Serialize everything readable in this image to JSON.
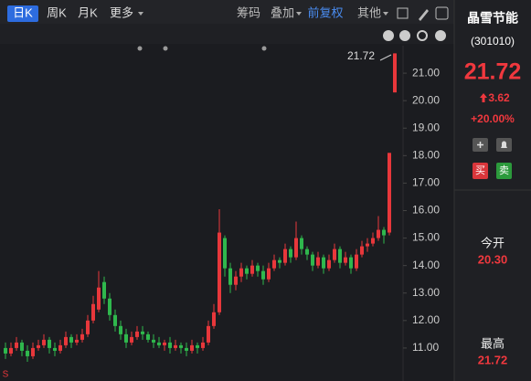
{
  "toolbar": {
    "tabs": [
      "日K",
      "周K",
      "月K",
      "更多"
    ],
    "tools": [
      "筹码",
      "叠加",
      "前复权",
      "其他"
    ]
  },
  "sidebar": {
    "name": "晶雪节能",
    "code": "(301010)",
    "price": "21.72",
    "change": "3.62",
    "change_pct": "+20.00%",
    "buy": "买",
    "sell": "卖",
    "open_label": "今开",
    "open_value": "20.30",
    "high_label": "最高",
    "high_value": "21.72"
  },
  "chart_data": {
    "type": "candlestick",
    "annotation": "21.72",
    "marker": "S",
    "up_color": "#e8373b",
    "down_color": "#2fb84d",
    "open": [
      11.0,
      10.8,
      11.0,
      11.2,
      10.9,
      10.7,
      11.0,
      11.1,
      11.3,
      11.0,
      10.9,
      11.1,
      11.4,
      11.2,
      11.3,
      11.5,
      12.0,
      12.4,
      13.4,
      12.8,
      12.2,
      11.8,
      11.5,
      11.2,
      11.4,
      11.6,
      11.5,
      11.3,
      11.2,
      11.1,
      11.2,
      11.0,
      11.1,
      11.0,
      10.9,
      11.1,
      11.0,
      11.2,
      11.8,
      12.3,
      15.0,
      13.9,
      13.3,
      13.6,
      13.9,
      13.7,
      14.0,
      13.8,
      13.5,
      13.9,
      14.2,
      14.1,
      14.6,
      14.3,
      15.0,
      14.6,
      14.4,
      14.0,
      14.3,
      13.9,
      14.2,
      14.6,
      14.1,
      14.3,
      13.9,
      14.4,
      14.7,
      14.8,
      15.0,
      15.3,
      15.2,
      20.3
    ],
    "high": [
      11.2,
      11.2,
      11.4,
      11.3,
      11.1,
      11.2,
      11.3,
      11.5,
      11.4,
      11.2,
      11.3,
      11.6,
      11.5,
      11.5,
      11.7,
      12.2,
      12.9,
      13.8,
      13.6,
      13.0,
      12.4,
      12.0,
      11.7,
      11.6,
      11.8,
      11.8,
      11.6,
      11.5,
      11.4,
      11.3,
      11.4,
      11.3,
      11.2,
      11.2,
      11.3,
      11.2,
      11.4,
      12.0,
      12.6,
      16.05,
      15.1,
      14.1,
      13.8,
      14.1,
      14.0,
      14.2,
      14.1,
      14.0,
      14.1,
      14.4,
      14.3,
      14.8,
      14.7,
      15.6,
      15.1,
      14.7,
      14.5,
      14.5,
      14.4,
      14.4,
      14.8,
      14.7,
      14.5,
      14.4,
      14.6,
      14.9,
      15.0,
      15.2,
      15.8,
      15.4,
      18.1,
      21.72
    ],
    "low": [
      10.6,
      10.7,
      10.9,
      10.7,
      10.5,
      10.6,
      10.9,
      11.0,
      10.8,
      10.7,
      10.8,
      11.0,
      11.0,
      11.1,
      11.2,
      11.4,
      11.9,
      12.3,
      12.6,
      12.0,
      11.6,
      11.3,
      11.0,
      11.1,
      11.3,
      11.3,
      11.2,
      11.0,
      11.0,
      10.9,
      10.8,
      10.9,
      10.8,
      10.7,
      10.8,
      10.8,
      10.9,
      11.1,
      11.7,
      12.2,
      13.6,
      13.0,
      13.1,
      13.4,
      13.5,
      13.6,
      13.6,
      13.3,
      13.4,
      13.8,
      13.9,
      14.0,
      14.1,
      14.2,
      14.4,
      14.2,
      13.8,
      13.9,
      13.7,
      13.8,
      14.1,
      13.9,
      14.0,
      13.7,
      13.8,
      14.3,
      14.5,
      14.7,
      14.9,
      14.8,
      15.1,
      20.3
    ],
    "close": [
      10.8,
      11.0,
      11.2,
      10.9,
      10.7,
      11.0,
      11.1,
      11.3,
      11.0,
      10.9,
      11.1,
      11.4,
      11.2,
      11.3,
      11.5,
      12.0,
      12.6,
      13.2,
      12.8,
      12.2,
      11.8,
      11.5,
      11.2,
      11.4,
      11.6,
      11.5,
      11.3,
      11.2,
      11.1,
      11.2,
      11.0,
      11.1,
      11.0,
      10.9,
      11.1,
      11.0,
      11.2,
      11.8,
      12.3,
      15.2,
      13.9,
      13.3,
      13.6,
      13.9,
      13.7,
      14.0,
      13.8,
      13.5,
      13.9,
      14.2,
      14.1,
      14.6,
      14.3,
      15.0,
      14.6,
      14.4,
      14.0,
      14.3,
      13.9,
      14.2,
      14.6,
      14.1,
      14.3,
      13.9,
      14.4,
      14.7,
      14.8,
      15.0,
      15.3,
      15.1,
      18.1,
      21.72
    ],
    "ylim": [
      9.8,
      22.0
    ],
    "yticks": [
      {
        "value": 11,
        "label": "11.00"
      },
      {
        "value": 12,
        "label": "12.00"
      },
      {
        "value": 13,
        "label": "13.00"
      },
      {
        "value": 14,
        "label": "14.00"
      },
      {
        "value": 15,
        "label": "15.00"
      },
      {
        "value": 16,
        "label": "16.00"
      },
      {
        "value": 17,
        "label": "17.00"
      },
      {
        "value": 18,
        "label": "18.00"
      },
      {
        "value": 19,
        "label": "19.00"
      },
      {
        "value": 20,
        "label": "20.00"
      },
      {
        "value": 21,
        "label": "21.00"
      }
    ]
  }
}
